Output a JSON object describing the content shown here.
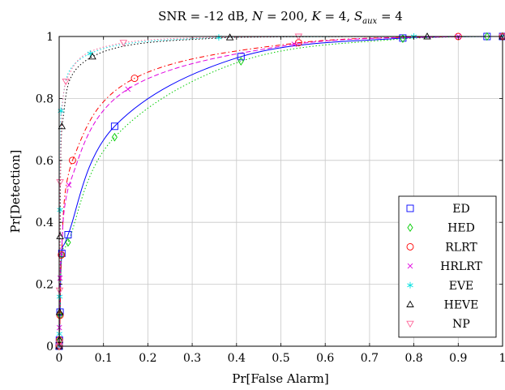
{
  "chart_data": {
    "type": "line",
    "title_parts": {
      "a": "SNR = -12 dB, ",
      "n_var": "N",
      "n_val": " = 200, ",
      "k_var": "K",
      "k_val": " = 4, ",
      "s_var": "S",
      "s_sub": "aux",
      "s_val": " = 4"
    },
    "xlabel": "Pr[False Alarm]",
    "ylabel": "Pr[Detection]",
    "xlim": [
      0,
      1
    ],
    "ylim": [
      0,
      1
    ],
    "xticks": [
      "0",
      "0.1",
      "0.2",
      "0.3",
      "0.4",
      "0.5",
      "0.6",
      "0.7",
      "0.8",
      "0.9",
      "1"
    ],
    "yticks": [
      "0",
      "0.2",
      "0.4",
      "0.6",
      "0.8",
      "1"
    ],
    "grid": true,
    "legend_position": "bottom-right",
    "series": [
      {
        "name": "ED",
        "color": "#0000ff",
        "marker": "square",
        "line": "solid",
        "points": [
          [
            0.0,
            0.0
          ],
          [
            0.0005,
            0.02
          ],
          [
            0.002,
            0.11
          ],
          [
            0.006,
            0.3
          ],
          [
            0.02,
            0.36
          ],
          [
            0.125,
            0.71
          ],
          [
            0.41,
            0.935
          ],
          [
            0.775,
            0.995
          ],
          [
            0.965,
            1.0
          ],
          [
            1.0,
            1.0
          ]
        ]
      },
      {
        "name": "HED",
        "color": "#00cc00",
        "marker": "diamond",
        "line": "dotted",
        "points": [
          [
            0.0,
            0.0
          ],
          [
            0.0005,
            0.02
          ],
          [
            0.002,
            0.1
          ],
          [
            0.006,
            0.295
          ],
          [
            0.02,
            0.335
          ],
          [
            0.125,
            0.675
          ],
          [
            0.41,
            0.92
          ],
          [
            0.775,
            0.993
          ],
          [
            0.965,
            1.0
          ],
          [
            1.0,
            1.0
          ]
        ]
      },
      {
        "name": "RLRT",
        "color": "#ff0000",
        "marker": "circle",
        "line": "dashdot",
        "points": [
          [
            0.0,
            0.0
          ],
          [
            0.0005,
            0.02
          ],
          [
            0.002,
            0.1
          ],
          [
            0.005,
            0.295
          ],
          [
            0.03,
            0.6
          ],
          [
            0.17,
            0.865
          ],
          [
            0.54,
            0.98
          ],
          [
            0.9,
            1.0
          ],
          [
            1.0,
            1.0
          ]
        ]
      },
      {
        "name": "HRLRT",
        "color": "#e000e0",
        "marker": "x",
        "line": "dashed",
        "points": [
          [
            0.0,
            0.0
          ],
          [
            0.0005,
            0.06
          ],
          [
            0.002,
            0.22
          ],
          [
            0.005,
            0.3
          ],
          [
            0.022,
            0.52
          ],
          [
            0.155,
            0.83
          ],
          [
            0.53,
            0.975
          ],
          [
            0.9,
            1.0
          ],
          [
            1.0,
            1.0
          ]
        ]
      },
      {
        "name": "EVE",
        "color": "#00e0e0",
        "marker": "asterisk",
        "line": "dotted",
        "points": [
          [
            0.0,
            0.0
          ],
          [
            0.0005,
            0.04
          ],
          [
            0.001,
            0.16
          ],
          [
            0.002,
            0.44
          ],
          [
            0.004,
            0.76
          ],
          [
            0.07,
            0.945
          ],
          [
            0.36,
            0.997
          ],
          [
            0.8,
            1.0
          ],
          [
            1.0,
            1.0
          ]
        ]
      },
      {
        "name": "HEVE",
        "color": "#000000",
        "marker": "triangle",
        "line": "dotted",
        "points": [
          [
            0.0,
            0.0
          ],
          [
            0.0005,
            0.02
          ],
          [
            0.001,
            0.11
          ],
          [
            0.002,
            0.355
          ],
          [
            0.006,
            0.71
          ],
          [
            0.075,
            0.935
          ],
          [
            0.385,
            0.997
          ],
          [
            0.83,
            1.0
          ],
          [
            1.0,
            1.0
          ]
        ]
      },
      {
        "name": "NP",
        "color": "#ff6699",
        "marker": "triangle-down",
        "line": "dotted",
        "points": [
          [
            0.0,
            0.0
          ],
          [
            0.0005,
            0.01
          ],
          [
            0.001,
            0.18
          ],
          [
            0.002,
            0.53
          ],
          [
            0.015,
            0.855
          ],
          [
            0.145,
            0.98
          ],
          [
            0.54,
            1.0
          ],
          [
            1.0,
            1.0
          ]
        ]
      }
    ]
  }
}
